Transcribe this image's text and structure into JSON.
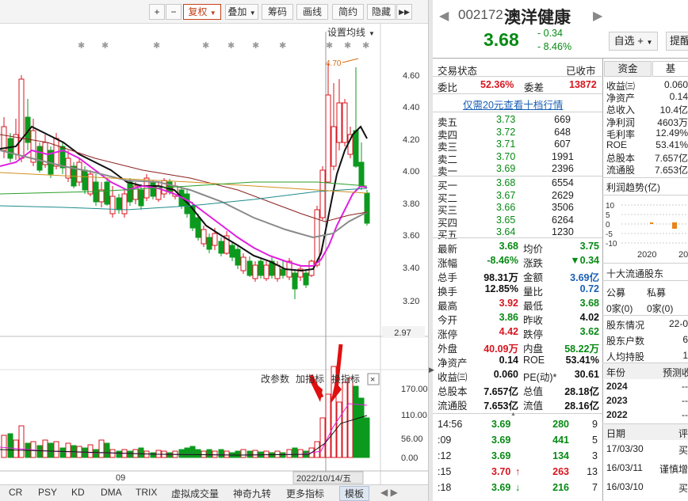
{
  "toolbar": {
    "plus": "+",
    "minus": "−",
    "fuquan": "复权",
    "diejia": "叠加",
    "chouma": "筹码",
    "huaxian": "画线",
    "jianyue": "简约",
    "yincang": "隐藏",
    "expand": "▶▶"
  },
  "chart": {
    "set_ma": "设置均线",
    "price_ticks": [
      "4.60",
      "4.40",
      "4.20",
      "4.00",
      "3.80",
      "3.60",
      "3.40",
      "3.20"
    ],
    "current_price_label": "2.97",
    "high_marker": "4.70",
    "vol_ticks": [
      "170.00",
      "110.00",
      "56.00",
      "0.00"
    ],
    "vol_panel_labels": {
      "gaicanshu": "改参数",
      "jiazhibiao": "加指标",
      "huanzhibiao": "换指标",
      "close": "×"
    },
    "date_label_09": "09",
    "crosshair_date": "2022/10/14/五",
    "bottom_tabs": [
      "CR",
      "PSY",
      "KD",
      "DMA",
      "TRIX",
      "虚拟成交量",
      "神奇九转",
      "更多指标",
      "模板"
    ]
  },
  "stock": {
    "code": "002172",
    "name": "澳洋健康",
    "price": "3.68",
    "change": "- 0.34",
    "change_pct": "- 8.46%",
    "watch_btn": "自选",
    "tip_btn": "提醒",
    "trade_status_label": "交易状态",
    "trade_status": "已收市",
    "weibi_label": "委比",
    "weibi": "52.36%",
    "weicha_label": "委差",
    "weicha": "13872",
    "link_text": "仅需20元查看十档行情"
  },
  "sell_orders": [
    {
      "label": "卖五",
      "price": "3.73",
      "vol": "669"
    },
    {
      "label": "卖四",
      "price": "3.72",
      "vol": "648"
    },
    {
      "label": "卖三",
      "price": "3.71",
      "vol": "607"
    },
    {
      "label": "卖二",
      "price": "3.70",
      "vol": "1991"
    },
    {
      "label": "卖一",
      "price": "3.69",
      "vol": "2396"
    }
  ],
  "buy_orders": [
    {
      "label": "买一",
      "price": "3.68",
      "vol": "6554"
    },
    {
      "label": "买二",
      "price": "3.67",
      "vol": "2629"
    },
    {
      "label": "买三",
      "price": "3.66",
      "vol": "3506"
    },
    {
      "label": "买四",
      "price": "3.65",
      "vol": "6264"
    },
    {
      "label": "买五",
      "price": "3.64",
      "vol": "1230"
    }
  ],
  "stats": [
    {
      "l1": "最新",
      "v1": "3.68",
      "c1": "green",
      "l2": "均价",
      "v2": "3.75",
      "c2": "green"
    },
    {
      "l1": "涨幅",
      "v1": "-8.46%",
      "c1": "green",
      "l2": "涨跌",
      "v2": "▼0.34",
      "c2": "green"
    },
    {
      "l1": "总手",
      "v1": "98.31万",
      "c1": "black",
      "l2": "金额",
      "v2": "3.69亿",
      "c2": "blue"
    },
    {
      "l1": "换手",
      "v1": "12.85%",
      "c1": "black",
      "l2": "量比",
      "v2": "0.72",
      "c2": "blue"
    },
    {
      "l1": "最高",
      "v1": "3.92",
      "c1": "red",
      "l2": "最低",
      "v2": "3.68",
      "c2": "green"
    },
    {
      "l1": "今开",
      "v1": "3.86",
      "c1": "green",
      "l2": "昨收",
      "v2": "4.02",
      "c2": "black"
    },
    {
      "l1": "涨停",
      "v1": "4.42",
      "c1": "red",
      "l2": "跌停",
      "v2": "3.62",
      "c2": "green"
    },
    {
      "l1": "外盘",
      "v1": "40.09万",
      "c1": "red",
      "l2": "内盘",
      "v2": "58.22万",
      "c2": "green"
    },
    {
      "l1": "净资产",
      "v1": "0.14",
      "c1": "black",
      "l2": "ROE",
      "v2": "53.41%",
      "c2": "black"
    },
    {
      "l1": "收益㈢",
      "v1": "0.060",
      "c1": "black",
      "l2": "PE(动)*",
      "v2": "30.61",
      "c2": "black"
    },
    {
      "l1": "总股本",
      "v1": "7.657亿",
      "c1": "black",
      "l2": "总值",
      "v2": "28.18亿",
      "c2": "black"
    },
    {
      "l1": "流通股",
      "v1": "7.653亿",
      "c1": "black",
      "l2": "流值",
      "v2": "28.16亿",
      "c2": "black"
    }
  ],
  "ticks": [
    {
      "time": "14:56",
      "price": "3.69",
      "pc": "green",
      "arrow": "",
      "vol": "280",
      "vc": "green",
      "n": "9"
    },
    {
      "time": ":09",
      "price": "3.69",
      "pc": "green",
      "arrow": "",
      "vol": "441",
      "vc": "green",
      "n": "5"
    },
    {
      "time": ":12",
      "price": "3.69",
      "pc": "green",
      "arrow": "",
      "vol": "134",
      "vc": "green",
      "n": "3"
    },
    {
      "time": ":15",
      "price": "3.70",
      "pc": "red",
      "arrow": "↑",
      "vol": "263",
      "vc": "red",
      "n": "13"
    },
    {
      "time": ":18",
      "price": "3.69",
      "pc": "green",
      "arrow": "↓",
      "vol": "216",
      "vc": "green",
      "n": "7"
    }
  ],
  "f10": {
    "tab_zijin": "资金",
    "tab_ji": "基",
    "items": [
      {
        "l": "收益㈢",
        "v": "0.060"
      },
      {
        "l": "净资产",
        "v": "0.14"
      },
      {
        "l": "总收入",
        "v": "10.4亿"
      },
      {
        "l": "净利润",
        "v": "4603万"
      },
      {
        "l": "毛利率",
        "v": "12.49%"
      },
      {
        "l": "ROE",
        "v": "53.41%"
      },
      {
        "l": "总股本",
        "v": "7.657亿"
      },
      {
        "l": "流通股",
        "v": "7.653亿"
      }
    ],
    "profit_trend": "利润趋势(亿)",
    "mini_ticks": [
      "10",
      "5",
      "0",
      "-5",
      "-10"
    ],
    "mini_years": [
      "2020",
      "20"
    ],
    "top_holders": "十大流通股东",
    "gongmu": "公募",
    "simu": "私募",
    "gongmu_v": "0家(0)",
    "simu_v": "0家(0)",
    "holder_rows": [
      {
        "l": "股东情况",
        "v": "22-0"
      },
      {
        "l": "股东户数",
        "v": "6"
      },
      {
        "l": "人均持股",
        "v": "1"
      }
    ],
    "year_header": "年份",
    "forecast_header": "预测收",
    "years": [
      {
        "y": "2024",
        "v": "--"
      },
      {
        "y": "2023",
        "v": "--"
      },
      {
        "y": "2022",
        "v": "--"
      }
    ],
    "date_header": "日期",
    "rating_header": "评",
    "ratings": [
      {
        "d": "17/03/30",
        "r": "买"
      },
      {
        "d": "16/03/11",
        "r": "谨慎增"
      },
      {
        "d": "16/03/10",
        "r": "买"
      }
    ]
  }
}
